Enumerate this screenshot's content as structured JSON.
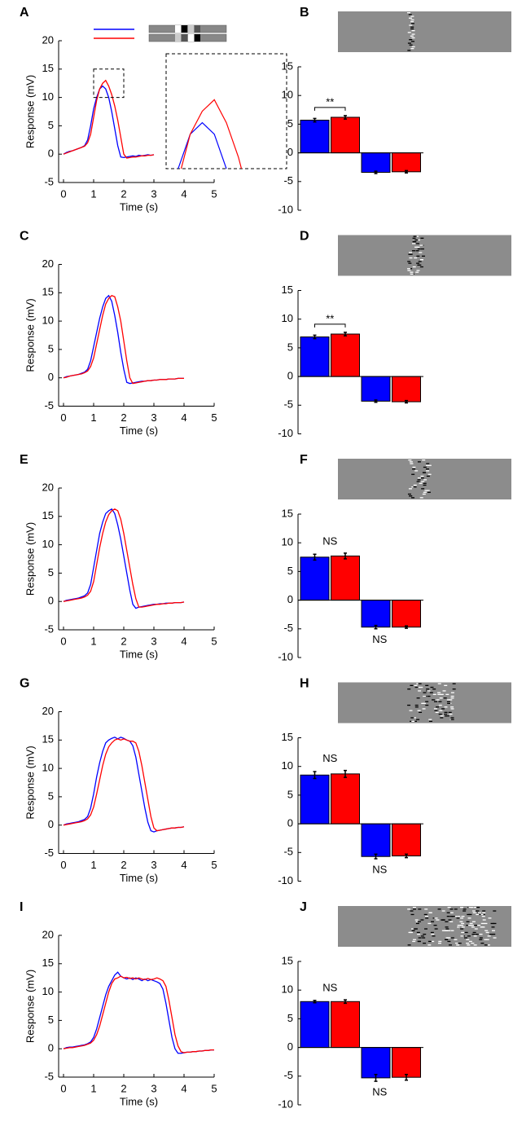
{
  "chart_data": [
    {
      "type": "line",
      "panel_label": "A",
      "xlabel": "Time (s)",
      "ylabel": "Response (mV)",
      "xlim": [
        0,
        5
      ],
      "ylim": [
        -5,
        20
      ],
      "xticks": [
        0,
        1,
        2,
        3,
        4,
        5
      ],
      "yticks": [
        -5,
        0,
        5,
        10,
        15,
        20
      ],
      "legend": true,
      "inset_xlim": [
        1,
        2
      ],
      "inset_ylim": [
        10,
        15
      ],
      "x": [
        0,
        0.1,
        0.2,
        0.3,
        0.4,
        0.5,
        0.6,
        0.7,
        0.8,
        0.9,
        1,
        1.1,
        1.2,
        1.3,
        1.4,
        1.5,
        1.6,
        1.7,
        1.8,
        1.9,
        2,
        2.1,
        2.2,
        2.3,
        2.4,
        2.5,
        2.6,
        2.7,
        2.8,
        2.9,
        3
      ],
      "series": [
        {
          "color": "#0000ff",
          "values": [
            0,
            0.3,
            0.5,
            0.6,
            0.8,
            1,
            1.2,
            1.5,
            2.5,
            5,
            8,
            10,
            11.5,
            12,
            11.5,
            10,
            7.5,
            4.5,
            1.5,
            -0.5,
            -0.6,
            -0.5,
            -0.4,
            -0.3,
            -0.4,
            -0.2,
            -0.3,
            -0.2,
            -0.1,
            -0.2,
            -0.1
          ]
        },
        {
          "color": "#ff0000",
          "values": [
            0,
            0.2,
            0.4,
            0.6,
            0.8,
            1,
            1.2,
            1.4,
            2,
            3.5,
            6.5,
            9.5,
            11.5,
            12.5,
            13,
            12,
            10.5,
            8.5,
            6,
            3,
            0,
            -0.7,
            -0.6,
            -0.5,
            -0.5,
            -0.4,
            -0.3,
            -0.3,
            -0.2,
            -0.2,
            -0.1
          ]
        }
      ]
    },
    {
      "type": "bar",
      "panel_label": "B",
      "categories": [
        null,
        null,
        null,
        null
      ],
      "values": [
        5.7,
        6.2,
        -3.4,
        -3.3
      ],
      "errors": [
        0.3,
        0.3,
        0.2,
        0.2
      ],
      "colors": [
        "#0000ff",
        "#ff0000",
        "#0000ff",
        "#ff0000"
      ],
      "ylim": [
        -10,
        15
      ],
      "yticks": [
        -10,
        -5,
        0,
        5,
        10,
        15
      ],
      "annotations": [
        "**"
      ],
      "bracket": true
    },
    {
      "type": "line",
      "panel_label": "C",
      "xlabel": "Time (s)",
      "ylabel": "Response (mV)",
      "xlim": [
        0,
        5
      ],
      "ylim": [
        -5,
        20
      ],
      "xticks": [
        0,
        1,
        2,
        3,
        4,
        5
      ],
      "yticks": [
        -5,
        0,
        5,
        10,
        15,
        20
      ],
      "x": [
        0,
        0.1,
        0.2,
        0.3,
        0.4,
        0.5,
        0.6,
        0.7,
        0.8,
        0.9,
        1,
        1.1,
        1.2,
        1.3,
        1.4,
        1.5,
        1.6,
        1.7,
        1.8,
        1.9,
        2,
        2.1,
        2.2,
        2.3,
        2.4,
        2.5,
        2.6,
        2.7,
        2.8,
        2.9,
        3,
        3.1,
        3.2,
        3.3,
        3.4,
        3.5,
        3.6,
        3.7,
        3.8,
        3.9,
        4
      ],
      "series": [
        {
          "color": "#0000ff",
          "values": [
            0,
            0.2,
            0.3,
            0.4,
            0.5,
            0.6,
            0.8,
            1,
            1.5,
            3,
            5.5,
            8,
            10.5,
            12.5,
            14,
            14.5,
            13.5,
            11,
            8,
            4.5,
            1.5,
            -0.8,
            -1,
            -0.9,
            -0.8,
            -0.7,
            -0.6,
            -0.6,
            -0.5,
            -0.5,
            -0.4,
            -0.4,
            -0.3,
            -0.3,
            -0.3,
            -0.2,
            -0.2,
            -0.2,
            -0.1,
            -0.1,
            -0.1
          ]
        },
        {
          "color": "#ff0000",
          "values": [
            0,
            0.1,
            0.3,
            0.4,
            0.5,
            0.6,
            0.7,
            0.9,
            1.2,
            2,
            3.5,
            6,
            8.5,
            11,
            13,
            14,
            14.5,
            14.3,
            12.5,
            10,
            6.5,
            3,
            0,
            -1,
            -0.9,
            -0.8,
            -0.7,
            -0.6,
            -0.5,
            -0.5,
            -0.4,
            -0.4,
            -0.3,
            -0.3,
            -0.3,
            -0.2,
            -0.2,
            -0.2,
            -0.1,
            -0.1,
            -0.1
          ]
        }
      ]
    },
    {
      "type": "bar",
      "panel_label": "D",
      "categories": [
        null,
        null,
        null,
        null
      ],
      "values": [
        6.9,
        7.4,
        -4.3,
        -4.4
      ],
      "errors": [
        0.3,
        0.3,
        0.2,
        0.2
      ],
      "colors": [
        "#0000ff",
        "#ff0000",
        "#0000ff",
        "#ff0000"
      ],
      "ylim": [
        -10,
        15
      ],
      "yticks": [
        -10,
        -5,
        0,
        5,
        10,
        15
      ],
      "annotations": [
        "**"
      ],
      "bracket": true
    },
    {
      "type": "line",
      "panel_label": "E",
      "xlabel": "Time (s)",
      "ylabel": "Response (mV)",
      "xlim": [
        0,
        5
      ],
      "ylim": [
        -5,
        20
      ],
      "xticks": [
        0,
        1,
        2,
        3,
        4,
        5
      ],
      "yticks": [
        -5,
        0,
        5,
        10,
        15,
        20
      ],
      "x": [
        0,
        0.1,
        0.2,
        0.3,
        0.4,
        0.5,
        0.6,
        0.7,
        0.8,
        0.9,
        1,
        1.1,
        1.2,
        1.3,
        1.4,
        1.5,
        1.6,
        1.7,
        1.8,
        1.9,
        2,
        2.1,
        2.2,
        2.3,
        2.4,
        2.5,
        2.6,
        2.7,
        2.8,
        2.9,
        3,
        3.1,
        3.2,
        3.3,
        3.4,
        3.5,
        3.6,
        3.7,
        3.8,
        3.9,
        4
      ],
      "series": [
        {
          "color": "#0000ff",
          "values": [
            0,
            0.2,
            0.3,
            0.4,
            0.5,
            0.6,
            0.8,
            1,
            1.5,
            3,
            6,
            9,
            12,
            14,
            15.5,
            16,
            16.3,
            15.5,
            13.5,
            11,
            8,
            5,
            2,
            -0.5,
            -1.2,
            -1,
            -0.9,
            -0.8,
            -0.7,
            -0.6,
            -0.5,
            -0.5,
            -0.4,
            -0.4,
            -0.3,
            -0.3,
            -0.3,
            -0.2,
            -0.2,
            -0.2,
            -0.1
          ]
        },
        {
          "color": "#ff0000",
          "values": [
            0,
            0.1,
            0.2,
            0.3,
            0.4,
            0.5,
            0.6,
            0.8,
            1.1,
            1.8,
            3.5,
            6.5,
            9.5,
            12,
            14,
            15.3,
            16,
            16.3,
            16,
            14.5,
            12,
            9,
            6,
            3,
            0.5,
            -1,
            -1,
            -0.9,
            -0.8,
            -0.7,
            -0.6,
            -0.5,
            -0.5,
            -0.4,
            -0.4,
            -0.3,
            -0.3,
            -0.2,
            -0.2,
            -0.2,
            -0.1
          ]
        }
      ]
    },
    {
      "type": "bar",
      "panel_label": "F",
      "categories": [
        null,
        null,
        null,
        null
      ],
      "values": [
        7.5,
        7.7,
        -4.7,
        -4.7
      ],
      "errors": [
        0.5,
        0.5,
        0.3,
        0.2
      ],
      "colors": [
        "#0000ff",
        "#ff0000",
        "#0000ff",
        "#ff0000"
      ],
      "ylim": [
        -10,
        15
      ],
      "yticks": [
        -10,
        -5,
        0,
        5,
        10,
        15
      ],
      "annotations": [
        "NS",
        "NS"
      ],
      "bracket": false
    },
    {
      "type": "line",
      "panel_label": "G",
      "xlabel": "Time (s)",
      "ylabel": "Response (mV)",
      "xlim": [
        0,
        5
      ],
      "ylim": [
        -5,
        20
      ],
      "xticks": [
        0,
        1,
        2,
        3,
        4,
        5
      ],
      "yticks": [
        -5,
        0,
        5,
        10,
        15,
        20
      ],
      "x": [
        0,
        0.1,
        0.2,
        0.3,
        0.4,
        0.5,
        0.6,
        0.7,
        0.8,
        0.9,
        1,
        1.1,
        1.2,
        1.3,
        1.4,
        1.5,
        1.6,
        1.7,
        1.8,
        1.9,
        2,
        2.1,
        2.2,
        2.3,
        2.4,
        2.5,
        2.6,
        2.7,
        2.8,
        2.9,
        3,
        3.1,
        3.2,
        3.3,
        3.4,
        3.5,
        3.6,
        3.7,
        3.8,
        3.9,
        4
      ],
      "series": [
        {
          "color": "#0000ff",
          "values": [
            0,
            0.2,
            0.3,
            0.4,
            0.5,
            0.6,
            0.8,
            1,
            1.5,
            3,
            5.5,
            8.5,
            11,
            13,
            14.5,
            15,
            15.3,
            15.5,
            15.2,
            15.5,
            15.3,
            15,
            14.8,
            14,
            12,
            9,
            6,
            3,
            0.5,
            -1,
            -1.2,
            -1,
            -0.9,
            -0.8,
            -0.7,
            -0.6,
            -0.5,
            -0.5,
            -0.4,
            -0.4,
            -0.3
          ]
        },
        {
          "color": "#ff0000",
          "values": [
            0,
            0.1,
            0.2,
            0.3,
            0.4,
            0.5,
            0.6,
            0.8,
            1.1,
            1.8,
            3.2,
            5.5,
            8,
            10.5,
            12.5,
            13.8,
            14.5,
            15,
            15.2,
            15,
            15.2,
            15,
            14.8,
            14.8,
            14.5,
            13,
            10.5,
            7.5,
            4.5,
            1.5,
            -0.5,
            -1,
            -0.9,
            -0.8,
            -0.7,
            -0.6,
            -0.5,
            -0.5,
            -0.4,
            -0.4,
            -0.3
          ]
        }
      ]
    },
    {
      "type": "bar",
      "panel_label": "H",
      "categories": [
        null,
        null,
        null,
        null
      ],
      "values": [
        8.5,
        8.7,
        -5.7,
        -5.6
      ],
      "errors": [
        0.6,
        0.6,
        0.4,
        0.3
      ],
      "colors": [
        "#0000ff",
        "#ff0000",
        "#0000ff",
        "#ff0000"
      ],
      "ylim": [
        -10,
        15
      ],
      "yticks": [
        -10,
        -5,
        0,
        5,
        10,
        15
      ],
      "annotations": [
        "NS",
        "NS"
      ],
      "bracket": false
    },
    {
      "type": "line",
      "panel_label": "I",
      "xlabel": "Time (s)",
      "ylabel": "Response (mV)",
      "xlim": [
        0,
        5
      ],
      "ylim": [
        -5,
        20
      ],
      "xticks": [
        0,
        1,
        2,
        3,
        4,
        5
      ],
      "yticks": [
        -5,
        0,
        5,
        10,
        15,
        20
      ],
      "x": [
        0,
        0.1,
        0.2,
        0.3,
        0.4,
        0.5,
        0.6,
        0.7,
        0.8,
        0.9,
        1,
        1.1,
        1.2,
        1.3,
        1.4,
        1.5,
        1.6,
        1.7,
        1.8,
        1.9,
        2,
        2.1,
        2.2,
        2.3,
        2.4,
        2.5,
        2.6,
        2.7,
        2.8,
        2.9,
        3,
        3.1,
        3.2,
        3.3,
        3.4,
        3.5,
        3.6,
        3.7,
        3.8,
        3.9,
        4,
        4.1,
        4.2,
        4.3,
        4.4,
        4.5,
        4.6,
        4.7,
        4.8,
        4.9,
        5
      ],
      "series": [
        {
          "color": "#0000ff",
          "values": [
            0,
            0.2,
            0.3,
            0.3,
            0.4,
            0.5,
            0.6,
            0.7,
            0.9,
            1.2,
            2,
            3.5,
            5.5,
            7.5,
            9.5,
            11,
            12,
            13,
            13.5,
            12.8,
            12.5,
            12.3,
            12.5,
            12.2,
            12.5,
            12.3,
            12,
            12.3,
            12,
            12.2,
            12,
            11.8,
            11.5,
            10.5,
            8,
            5,
            2,
            0,
            -0.8,
            -0.8,
            -0.7,
            -0.6,
            -0.6,
            -0.5,
            -0.5,
            -0.4,
            -0.4,
            -0.3,
            -0.3,
            -0.2,
            -0.2
          ]
        },
        {
          "color": "#ff0000",
          "values": [
            0,
            0.1,
            0.2,
            0.2,
            0.3,
            0.4,
            0.5,
            0.6,
            0.8,
            1,
            1.5,
            2.5,
            4,
            6,
            8,
            10,
            11.5,
            12.3,
            12.5,
            12.8,
            12.5,
            12.6,
            12.4,
            12.5,
            12.3,
            12.5,
            12.3,
            12.2,
            12.4,
            12.2,
            12.3,
            12.5,
            12.3,
            12,
            11,
            8.5,
            5.5,
            2.5,
            0.5,
            -0.5,
            -0.7,
            -0.6,
            -0.6,
            -0.5,
            -0.5,
            -0.4,
            -0.4,
            -0.3,
            -0.3,
            -0.2,
            -0.2
          ]
        }
      ]
    },
    {
      "type": "bar",
      "panel_label": "J",
      "categories": [
        null,
        null,
        null,
        null
      ],
      "values": [
        8.0,
        8.0,
        -5.3,
        -5.2
      ],
      "errors": [
        0.2,
        0.3,
        0.6,
        0.5
      ],
      "colors": [
        "#0000ff",
        "#ff0000",
        "#0000ff",
        "#ff0000"
      ],
      "ylim": [
        -10,
        15
      ],
      "yticks": [
        -10,
        -5,
        0,
        5,
        10,
        15
      ],
      "annotations": [
        "NS",
        "NS"
      ],
      "bracket": false
    }
  ]
}
